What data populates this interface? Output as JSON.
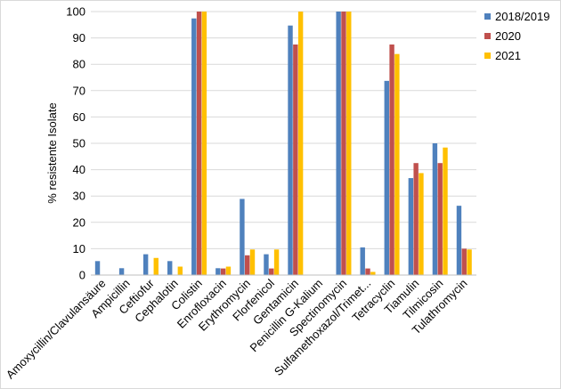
{
  "chart_data": {
    "type": "bar",
    "title": "",
    "xlabel": "",
    "ylabel": "% resistente  Isolate",
    "ylim": [
      0,
      100
    ],
    "yticks": [
      0,
      10,
      20,
      30,
      40,
      50,
      60,
      70,
      80,
      90,
      100
    ],
    "grid": true,
    "legend_position": "top-right",
    "categories": [
      "Amoxycillin/Clavulansäure",
      "Ampicillin",
      "Ceftiofur",
      "Cephalotin",
      "Colistin",
      "Enrofloxacin",
      "Erythromycin",
      "Florfenicol",
      "Gentamicin",
      "Penicillin G-Kalium",
      "Spectinomycin",
      "Sulfamethoxazol/Trimet...",
      "Tetracyclin",
      "Tiamulin",
      "Tilmicosin",
      "Tulathromycin"
    ],
    "series": [
      {
        "name": "2018/2019",
        "color": "#4f81bd",
        "values": [
          5.3,
          2.6,
          7.9,
          5.3,
          97.4,
          2.6,
          28.9,
          7.9,
          94.7,
          null,
          100,
          10.5,
          73.7,
          36.8,
          50.0,
          26.3
        ]
      },
      {
        "name": "2020",
        "color": "#c0504d",
        "values": [
          null,
          null,
          null,
          null,
          100,
          2.5,
          7.5,
          2.5,
          87.5,
          null,
          100,
          2.5,
          87.5,
          42.5,
          42.5,
          10.0
        ]
      },
      {
        "name": "2021",
        "color": "#ffc000",
        "values": [
          null,
          null,
          6.5,
          3.2,
          100,
          3.2,
          9.7,
          9.7,
          100,
          null,
          100,
          1.2,
          83.9,
          38.7,
          48.4,
          9.7
        ]
      }
    ]
  }
}
